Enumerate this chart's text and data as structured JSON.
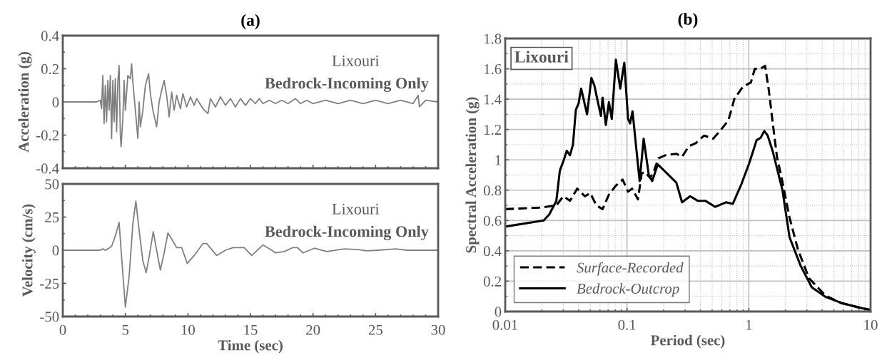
{
  "chart_data": [
    {
      "type": "line",
      "title": "(a)",
      "ylabel": "Acceleration (g)",
      "annotations": [
        "Lixouri",
        "Bedrock-Incoming Only"
      ],
      "xlim": [
        0,
        30
      ],
      "xticks": [
        0,
        5,
        10,
        15,
        20,
        25,
        30
      ],
      "ylim": [
        -0.4,
        0.4
      ],
      "yticks": [
        -0.4,
        -0.2,
        0,
        0.2,
        0.4
      ],
      "tick_labels": "y",
      "grid": false,
      "legend": false,
      "series": [
        {
          "color": "#808080",
          "line_style": "solid",
          "x": [
            0,
            2.7,
            3.0,
            3.1,
            3.2,
            3.3,
            3.4,
            3.5,
            3.6,
            3.7,
            3.8,
            3.9,
            4.0,
            4.1,
            4.2,
            4.3,
            4.4,
            4.5,
            4.6,
            4.66,
            4.8,
            4.9,
            5.0,
            5.2,
            5.4,
            5.5,
            5.6,
            5.8,
            6.0,
            6.1,
            6.2,
            6.4,
            6.6,
            6.86,
            7.0,
            7.2,
            7.5,
            7.7,
            7.9,
            8.1,
            8.3,
            8.5,
            8.7,
            8.9,
            9.1,
            9.4,
            9.6,
            9.9,
            10.2,
            10.5,
            10.7,
            11.2,
            11.6,
            11.8,
            12.2,
            12.6,
            13.0,
            13.4,
            13.8,
            14.2,
            14.6,
            15.0,
            15.4,
            15.7,
            16.0,
            16.5,
            17.0,
            17.5,
            18.0,
            18.6,
            19.0,
            19.5,
            20.0,
            21.0,
            22.0,
            23.0,
            24.0,
            25.0,
            26.0,
            27.0,
            28.0,
            28.4,
            28.5,
            29.0,
            30.0
          ],
          "values": [
            0,
            0,
            0.01,
            -0.04,
            0.16,
            -0.13,
            0.1,
            -0.12,
            0.13,
            -0.05,
            0.16,
            -0.22,
            0.13,
            -0.12,
            0.14,
            -0.18,
            0.12,
            0.22,
            -0.2,
            -0.27,
            -0.1,
            0.13,
            -0.05,
            0.16,
            0.14,
            0.23,
            0.12,
            -0.05,
            -0.22,
            0.0,
            -0.15,
            -0.05,
            0.1,
            0.17,
            0.05,
            -0.05,
            -0.15,
            0.0,
            0.07,
            0.13,
            0.04,
            -0.09,
            0.06,
            -0.05,
            0.04,
            -0.04,
            0.05,
            -0.03,
            0.03,
            -0.02,
            0.02,
            -0.04,
            -0.07,
            0.02,
            -0.03,
            0.03,
            -0.02,
            0.02,
            -0.03,
            0.02,
            -0.02,
            0.02,
            -0.01,
            0.02,
            -0.01,
            0.01,
            -0.01,
            0.01,
            -0.01,
            0.02,
            -0.01,
            0.01,
            -0.01,
            0.01,
            -0.01,
            0.01,
            -0.01,
            0.01,
            -0.01,
            0.01,
            -0.01,
            0.04,
            -0.03,
            0.01,
            0
          ]
        }
      ]
    },
    {
      "type": "line",
      "xlabel": "Time (sec)",
      "ylabel": "Velocity (cm/s)",
      "annotations": [
        "Lixouri",
        "Bedrock-Incoming Only"
      ],
      "xlim": [
        0,
        30
      ],
      "xticks": [
        0,
        5,
        10,
        15,
        20,
        25,
        30
      ],
      "ylim": [
        -50,
        50
      ],
      "yticks": [
        -50,
        -25,
        0,
        25,
        50
      ],
      "grid": false,
      "legend": false,
      "series": [
        {
          "color": "#808080",
          "line_style": "solid",
          "x": [
            0,
            3.0,
            3.2,
            3.4,
            3.6,
            3.9,
            4.1,
            4.3,
            4.5,
            4.7,
            5.0,
            5.3,
            5.6,
            5.84,
            6.1,
            6.4,
            6.66,
            6.9,
            7.23,
            7.5,
            7.8,
            8.1,
            8.4,
            8.6,
            9.1,
            9.5,
            9.95,
            10.5,
            11.2,
            11.5,
            12.3,
            13.0,
            13.6,
            14.5,
            15.1,
            16.0,
            16.7,
            17.0,
            17.7,
            18.4,
            18.75,
            19.2,
            20.1,
            21.1,
            22.5,
            23.6,
            24.3,
            25.2,
            26.6,
            27.5,
            30.0
          ],
          "values": [
            0,
            0,
            1,
            0,
            1,
            3,
            8,
            14,
            21,
            -5,
            -43,
            -20,
            20,
            37,
            15,
            -8,
            -17,
            -5,
            14,
            0,
            -15,
            -2,
            13,
            10,
            2,
            2,
            -10,
            -4,
            5,
            5,
            -4,
            0,
            2,
            2,
            -4,
            4,
            0,
            -2,
            -1,
            2,
            2,
            -2,
            1.5,
            -1,
            1,
            0.5,
            -0.5,
            0,
            1,
            0,
            0
          ]
        }
      ]
    },
    {
      "type": "line",
      "title": "(b)",
      "xlabel": "Period (sec)",
      "ylabel": "Spectral Acceleration (g)",
      "annotations": [
        "Lixouri"
      ],
      "log": "x",
      "xlim": [
        0.01,
        10
      ],
      "xticks": [
        0.01,
        0.1,
        1,
        10
      ],
      "ylim": [
        0,
        1.8
      ],
      "yticks": [
        0,
        0.2,
        0.4,
        0.6,
        0.8,
        1,
        1.2,
        1.4,
        1.6,
        1.8
      ],
      "grid": true,
      "legend": "bottom left",
      "series": [
        {
          "name": "Surface-Recorded",
          "color": "#000000",
          "line_style": "dashed",
          "x": [
            0.01,
            0.0197,
            0.0263,
            0.03,
            0.034,
            0.039,
            0.045,
            0.05,
            0.056,
            0.063,
            0.071,
            0.081,
            0.092,
            0.102,
            0.11,
            0.123,
            0.132,
            0.14,
            0.155,
            0.167,
            0.181,
            0.206,
            0.254,
            0.283,
            0.322,
            0.367,
            0.43,
            0.51,
            0.58,
            0.68,
            0.76,
            0.89,
            1.04,
            1.12,
            1.25,
            1.36,
            1.46,
            1.58,
            1.71,
            1.84,
            2.16,
            2.53,
            3.12,
            4.25,
            5.8,
            8.0,
            10
          ],
          "values": [
            0.675,
            0.685,
            0.7,
            0.76,
            0.73,
            0.81,
            0.76,
            0.78,
            0.7,
            0.675,
            0.77,
            0.83,
            0.87,
            0.79,
            0.81,
            0.74,
            0.91,
            0.92,
            0.88,
            0.93,
            1.01,
            1.03,
            1.04,
            1.02,
            1.09,
            1.11,
            1.16,
            1.14,
            1.19,
            1.26,
            1.4,
            1.48,
            1.51,
            1.6,
            1.6,
            1.62,
            1.46,
            1.23,
            1.01,
            0.9,
            0.62,
            0.41,
            0.22,
            0.106,
            0.054,
            0.028,
            0.01
          ]
        },
        {
          "name": "Bedrock-Outcrop",
          "color": "#000000",
          "line_style": "solid",
          "x": [
            0.01,
            0.0207,
            0.023,
            0.0263,
            0.0281,
            0.03,
            0.032,
            0.034,
            0.036,
            0.038,
            0.04,
            0.042,
            0.047,
            0.051,
            0.054,
            0.057,
            0.061,
            0.063,
            0.067,
            0.071,
            0.075,
            0.081,
            0.088,
            0.095,
            0.102,
            0.106,
            0.111,
            0.119,
            0.127,
            0.137,
            0.151,
            0.161,
            0.179,
            0.254,
            0.283,
            0.33,
            0.38,
            0.44,
            0.53,
            0.65,
            0.74,
            0.87,
            1.01,
            1.16,
            1.25,
            1.34,
            1.43,
            1.58,
            1.89,
            2.16,
            2.67,
            3.29,
            4.25,
            5.8,
            8.0,
            10
          ],
          "values": [
            0.56,
            0.6,
            0.64,
            0.73,
            0.93,
            0.99,
            1.06,
            1.03,
            1.1,
            1.33,
            1.37,
            1.47,
            1.3,
            1.54,
            1.49,
            1.4,
            1.29,
            1.41,
            1.23,
            1.38,
            1.27,
            1.66,
            1.47,
            1.64,
            1.27,
            1.24,
            1.32,
            1.08,
            0.86,
            1.14,
            0.9,
            0.86,
            0.97,
            0.85,
            0.72,
            0.76,
            0.73,
            0.73,
            0.69,
            0.72,
            0.71,
            0.84,
            0.98,
            1.13,
            1.145,
            1.19,
            1.16,
            1.05,
            0.8,
            0.49,
            0.3,
            0.16,
            0.097,
            0.056,
            0.026,
            0.01
          ]
        }
      ]
    }
  ]
}
